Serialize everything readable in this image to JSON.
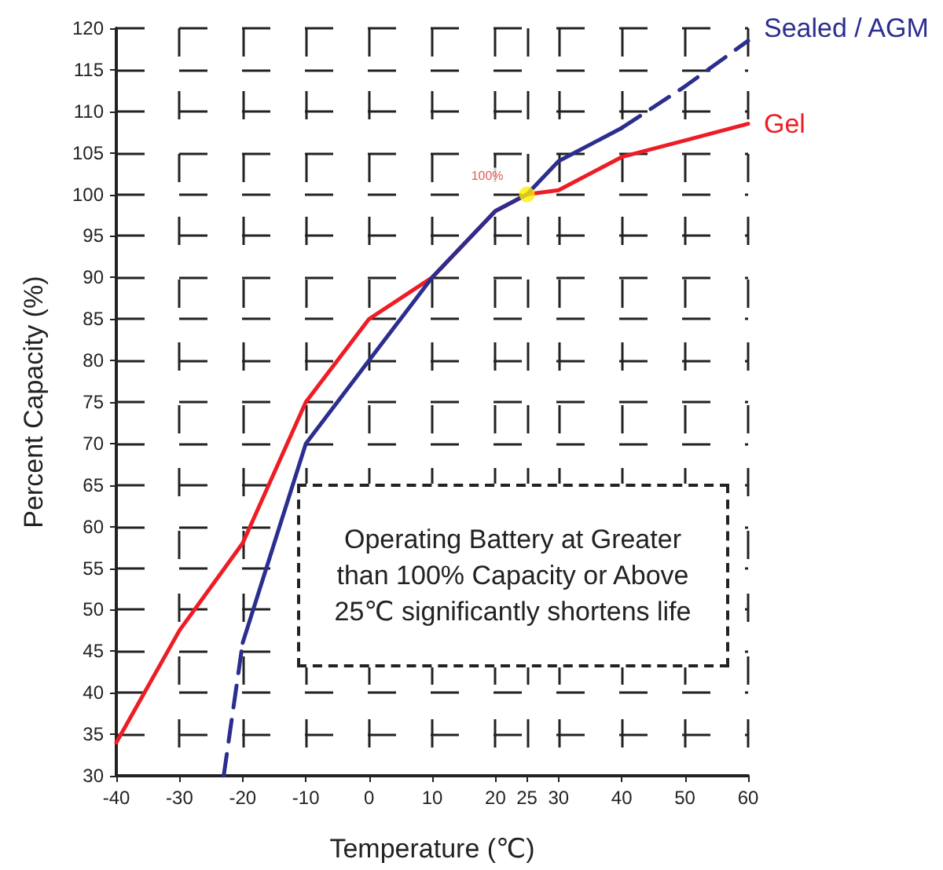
{
  "chart_data": {
    "type": "line",
    "xlabel": "Temperature (℃)",
    "ylabel": "Percent Capacity (%)",
    "xlim": [
      -40,
      60
    ],
    "xticks": [
      -40,
      -30,
      -20,
      -10,
      0,
      10,
      20,
      25,
      30,
      40,
      50,
      60
    ],
    "ylim": [
      30,
      120
    ],
    "yticks": [
      30,
      35,
      40,
      45,
      50,
      55,
      60,
      65,
      70,
      75,
      80,
      85,
      90,
      95,
      100,
      105,
      110,
      115,
      120
    ],
    "grid": true,
    "legend": false,
    "marker": "none",
    "series": [
      {
        "name": "Gel",
        "color": "#ee1c25",
        "line_style": "solid",
        "x": [
          -40,
          -30,
          -20,
          -10,
          0,
          10,
          20,
          25,
          30,
          40,
          50,
          60
        ],
        "values": [
          34,
          47.5,
          58,
          75,
          85,
          90,
          98,
          100,
          100.5,
          104.5,
          106.5,
          108.5
        ]
      },
      {
        "color": "#2b2e8f",
        "line_style": "dashed",
        "x": [
          -23,
          -20
        ],
        "values": [
          30,
          46
        ]
      },
      {
        "color": "#2b2e8f",
        "line_style": "solid",
        "x": [
          -20,
          -10,
          0,
          10,
          20,
          25,
          30,
          40
        ],
        "values": [
          46,
          70,
          80,
          90,
          98,
          100,
          104,
          108
        ]
      },
      {
        "name": "Sealed / AGM",
        "color": "#2b2e8f",
        "line_style": "dashed",
        "x": [
          40,
          50,
          60
        ],
        "values": [
          108,
          113,
          118.5
        ]
      },
      {
        "type": "scatter",
        "marker": "circle",
        "color": "#ffee00",
        "x": [
          25
        ],
        "values": [
          100
        ],
        "value_labels": [
          "100%"
        ]
      }
    ],
    "annotations": [
      "Operating Battery at Greater\nthan 100% Capacity or Above\n25℃  significantly shortens life"
    ]
  }
}
